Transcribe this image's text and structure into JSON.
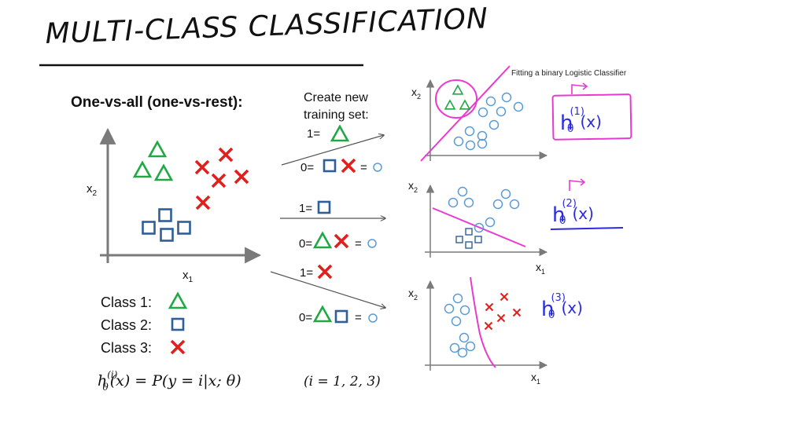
{
  "title": "MULTI-CLASS CLASSIFICATION",
  "heading": "One-vs-all (one-vs-rest):",
  "axis": {
    "x1": "x",
    "x2": "x",
    "sub1": "1",
    "sub2": "2"
  },
  "classes": [
    {
      "label": "Class 1:",
      "shape": "triangle",
      "color": "#22a745"
    },
    {
      "label": "Class 2:",
      "shape": "square",
      "color": "#2f5f96"
    },
    {
      "label": "Class 3:",
      "shape": "cross",
      "color": "#e0201d"
    }
  ],
  "formula": {
    "lhs": "h",
    "theta": "θ",
    "sup": "(i)",
    "rhs": "(x) = P(y = i|x; θ)",
    "range": "(i = 1, 2, 3)"
  },
  "middle": {
    "create_line1": "Create new",
    "create_line2": "training set:",
    "one": "1=",
    "zero": "0=",
    "eq": "="
  },
  "annotation": "Fitting a binary Logistic Classifier",
  "hypotheses": [
    {
      "h": "h",
      "theta": "θ",
      "sup": "(1)",
      "arg": "(x)"
    },
    {
      "h": "h",
      "theta": "θ",
      "sup": "(2)",
      "arg": "(x)"
    },
    {
      "h": "h",
      "theta": "θ",
      "sup": "(3)",
      "arg": "(x)"
    }
  ],
  "colors": {
    "green": "#22a745",
    "blue": "#2f5f96",
    "red": "#e0201d",
    "circle": "#5b9bd5",
    "pink": "#e83ad0",
    "ink": "#2a2ae0"
  }
}
